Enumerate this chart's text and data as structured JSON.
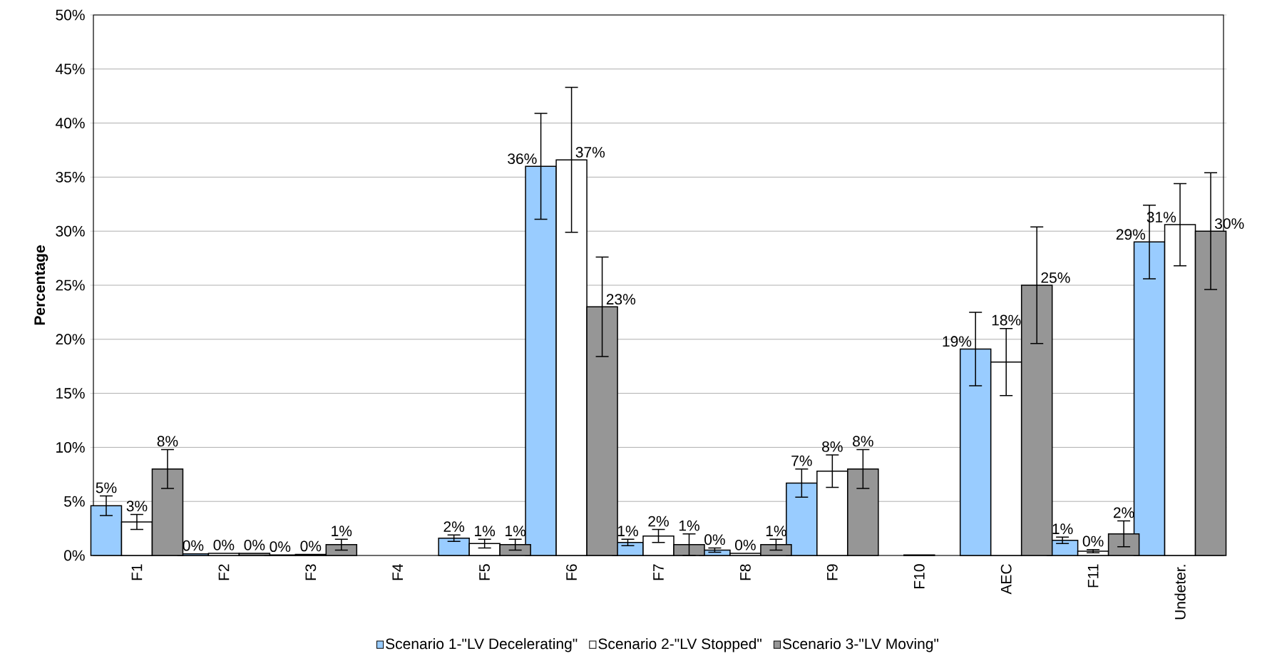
{
  "chart_data": {
    "type": "bar",
    "ylabel": "Percentage",
    "categories": [
      "F1",
      "F2",
      "F3",
      "F4",
      "F5",
      "F6",
      "F7",
      "F8",
      "F9",
      "F10",
      "AEC",
      "F11",
      "Undeter."
    ],
    "series": [
      {
        "name": "Scenario 1-\"LV Decelerating\"",
        "color": "#99ccff",
        "values": [
          4.6,
          0.15,
          0.05,
          null,
          1.6,
          36.0,
          1.2,
          0.5,
          6.7,
          null,
          19.1,
          1.4,
          29.0
        ],
        "errors": [
          0.9,
          null,
          null,
          null,
          0.3,
          4.9,
          0.3,
          0.2,
          1.3,
          null,
          3.4,
          0.3,
          3.4
        ],
        "value_labels": [
          "5%",
          "0%",
          "0%",
          null,
          "2%",
          "36%",
          "1%",
          "0%",
          "7%",
          null,
          "19%",
          "1%",
          "29%"
        ]
      },
      {
        "name": "Scenario 2-\"LV Stopped\"",
        "color": "#ffffff",
        "values": [
          3.1,
          0.2,
          0.1,
          null,
          1.1,
          36.6,
          1.8,
          0.2,
          7.8,
          0.05,
          17.9,
          0.4,
          30.6
        ],
        "errors": [
          0.7,
          null,
          null,
          null,
          0.4,
          6.7,
          0.6,
          null,
          1.5,
          null,
          3.1,
          0.15,
          3.8
        ],
        "value_labels": [
          "3%",
          "0%",
          "0%",
          null,
          "1%",
          "37%",
          "2%",
          "0%",
          "8%",
          null,
          "18%",
          "0%",
          "31%"
        ]
      },
      {
        "name": "Scenario 3-\"LV Moving\"",
        "color": "#969696",
        "values": [
          8.0,
          0.2,
          1.0,
          null,
          1.0,
          23.0,
          1.0,
          1.0,
          8.0,
          null,
          25.0,
          2.0,
          30.0
        ],
        "errors": [
          1.8,
          null,
          0.5,
          null,
          0.5,
          4.6,
          1.0,
          0.5,
          1.8,
          null,
          5.4,
          1.2,
          5.4
        ],
        "value_labels": [
          "8%",
          "0%",
          "1%",
          null,
          "1%",
          "23%",
          "1%",
          "1%",
          "8%",
          null,
          "25%",
          "2%",
          "30%"
        ]
      }
    ],
    "ylim": [
      0,
      50
    ],
    "yticks": [
      {
        "value": 0,
        "label": "0%"
      },
      {
        "value": 5,
        "label": "5%"
      },
      {
        "value": 10,
        "label": "10%"
      },
      {
        "value": 15,
        "label": "15%"
      },
      {
        "value": 20,
        "label": "20%"
      },
      {
        "value": 25,
        "label": "25%"
      },
      {
        "value": 30,
        "label": "30%"
      },
      {
        "value": 35,
        "label": "35%"
      },
      {
        "value": 40,
        "label": "40%"
      },
      {
        "value": 45,
        "label": "45%"
      },
      {
        "value": 50,
        "label": "50%"
      }
    ],
    "grid": "y",
    "legend": "bottom"
  }
}
